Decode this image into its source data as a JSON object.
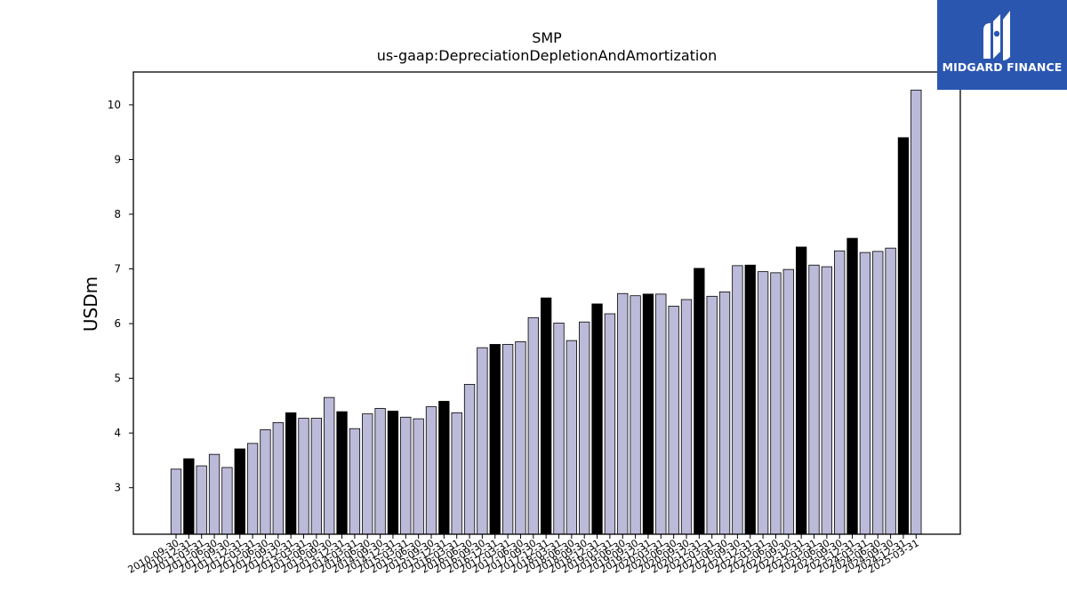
{
  "brand": {
    "name": "MIDGARD FINANCE",
    "bg_color": "#2a56b0",
    "icon": "midgard-m-logo-icon"
  },
  "chart_data": {
    "type": "bar",
    "title": "SMP",
    "subtitle": "us-gaap:DepreciationDepletionAndAmortization",
    "xlabel": "",
    "ylabel": "USDm",
    "ylim": [
      2.15,
      10.6
    ],
    "yticks": [
      3,
      4,
      5,
      6,
      7,
      8,
      9,
      10
    ],
    "grid": false,
    "colors": {
      "regular": "#bcbad9",
      "annual": "#000000",
      "edge": "#000000"
    },
    "categories": [
      "2010-09-30",
      "2010-12-31",
      "2011-03-31",
      "2011-06-30",
      "2011-09-30",
      "2011-12-31",
      "2012-03-31",
      "2012-06-30",
      "2012-09-30",
      "2012-12-31",
      "2013-03-31",
      "2013-06-30",
      "2013-09-30",
      "2013-12-31",
      "2014-03-31",
      "2014-06-30",
      "2014-09-30",
      "2014-12-31",
      "2015-03-31",
      "2015-06-30",
      "2015-09-30",
      "2015-12-31",
      "2016-03-31",
      "2016-06-30",
      "2016-09-30",
      "2016-12-31",
      "2017-03-31",
      "2017-06-30",
      "2017-09-30",
      "2017-12-31",
      "2018-03-31",
      "2018-06-30",
      "2018-09-30",
      "2018-12-31",
      "2019-03-31",
      "2019-06-30",
      "2019-09-30",
      "2019-12-31",
      "2020-03-31",
      "2020-06-30",
      "2020-09-30",
      "2020-12-31",
      "2021-03-31",
      "2021-06-30",
      "2021-09-30",
      "2021-12-31",
      "2022-03-31",
      "2022-06-30",
      "2022-09-30",
      "2022-12-31",
      "2023-03-31",
      "2023-06-30",
      "2023-09-30",
      "2023-12-31",
      "2024-03-31",
      "2024-06-30",
      "2024-09-30",
      "2024-12-31",
      "2025-03-31"
    ],
    "values": [
      3.34,
      3.53,
      3.4,
      3.61,
      3.37,
      3.71,
      3.81,
      4.06,
      4.19,
      4.37,
      4.27,
      4.27,
      4.65,
      4.39,
      4.08,
      4.35,
      4.45,
      4.4,
      4.29,
      4.26,
      4.48,
      4.58,
      4.37,
      4.89,
      5.56,
      5.62,
      5.62,
      5.67,
      6.11,
      6.47,
      6.01,
      5.69,
      6.03,
      6.36,
      6.18,
      6.55,
      6.51,
      6.54,
      6.54,
      6.32,
      6.44,
      7.01,
      6.5,
      6.58,
      7.06,
      7.07,
      6.95,
      6.93,
      6.99,
      7.4,
      7.07,
      7.04,
      7.33,
      7.56,
      7.3,
      7.32,
      7.38,
      9.4,
      10.27
    ],
    "highlight": [
      false,
      true,
      false,
      false,
      false,
      true,
      false,
      false,
      false,
      true,
      false,
      false,
      false,
      true,
      false,
      false,
      false,
      true,
      false,
      false,
      false,
      true,
      false,
      false,
      false,
      true,
      false,
      false,
      false,
      true,
      false,
      false,
      false,
      true,
      false,
      false,
      false,
      true,
      false,
      false,
      false,
      true,
      false,
      false,
      false,
      true,
      false,
      false,
      false,
      true,
      false,
      false,
      false,
      true,
      false,
      false,
      false,
      true,
      false
    ]
  }
}
